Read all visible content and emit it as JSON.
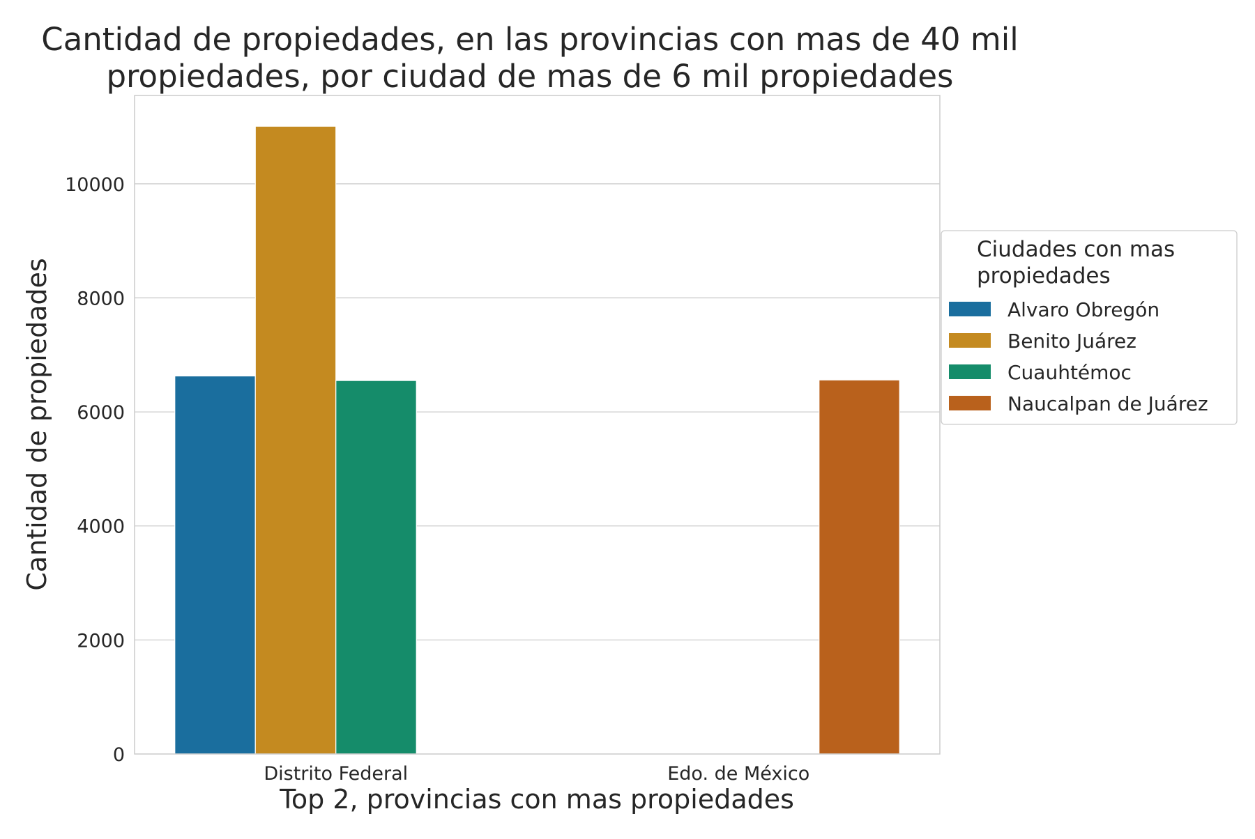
{
  "chart_data": {
    "type": "bar",
    "title": "Cantidad de propiedades, en las provincias con mas de 40 mil\npropiedades, por ciudad de mas de 6 mil propiedades",
    "xlabel": "Top 2, provincias con mas propiedades",
    "ylabel": "Cantidad de propiedades",
    "categories": [
      "Distrito Federal",
      "Edo. de México"
    ],
    "series": [
      {
        "name": "Alvaro Obregón",
        "color": "#1a6e9e",
        "values": [
          6630,
          null
        ]
      },
      {
        "name": "Benito Juárez",
        "color": "#c48a20",
        "values": [
          11010,
          null
        ]
      },
      {
        "name": "Cuauhtémoc",
        "color": "#158c6a",
        "values": [
          6550,
          null
        ]
      },
      {
        "name": "Naucalpan de Juárez",
        "color": "#b9611c",
        "values": [
          null,
          6560
        ]
      }
    ],
    "ylim": [
      0,
      11550
    ],
    "yticks": [
      0,
      2000,
      4000,
      6000,
      8000,
      10000
    ],
    "grid": true,
    "legend": {
      "title": "Ciudades con mas\npropiedades",
      "placement": "center-right outside"
    }
  }
}
